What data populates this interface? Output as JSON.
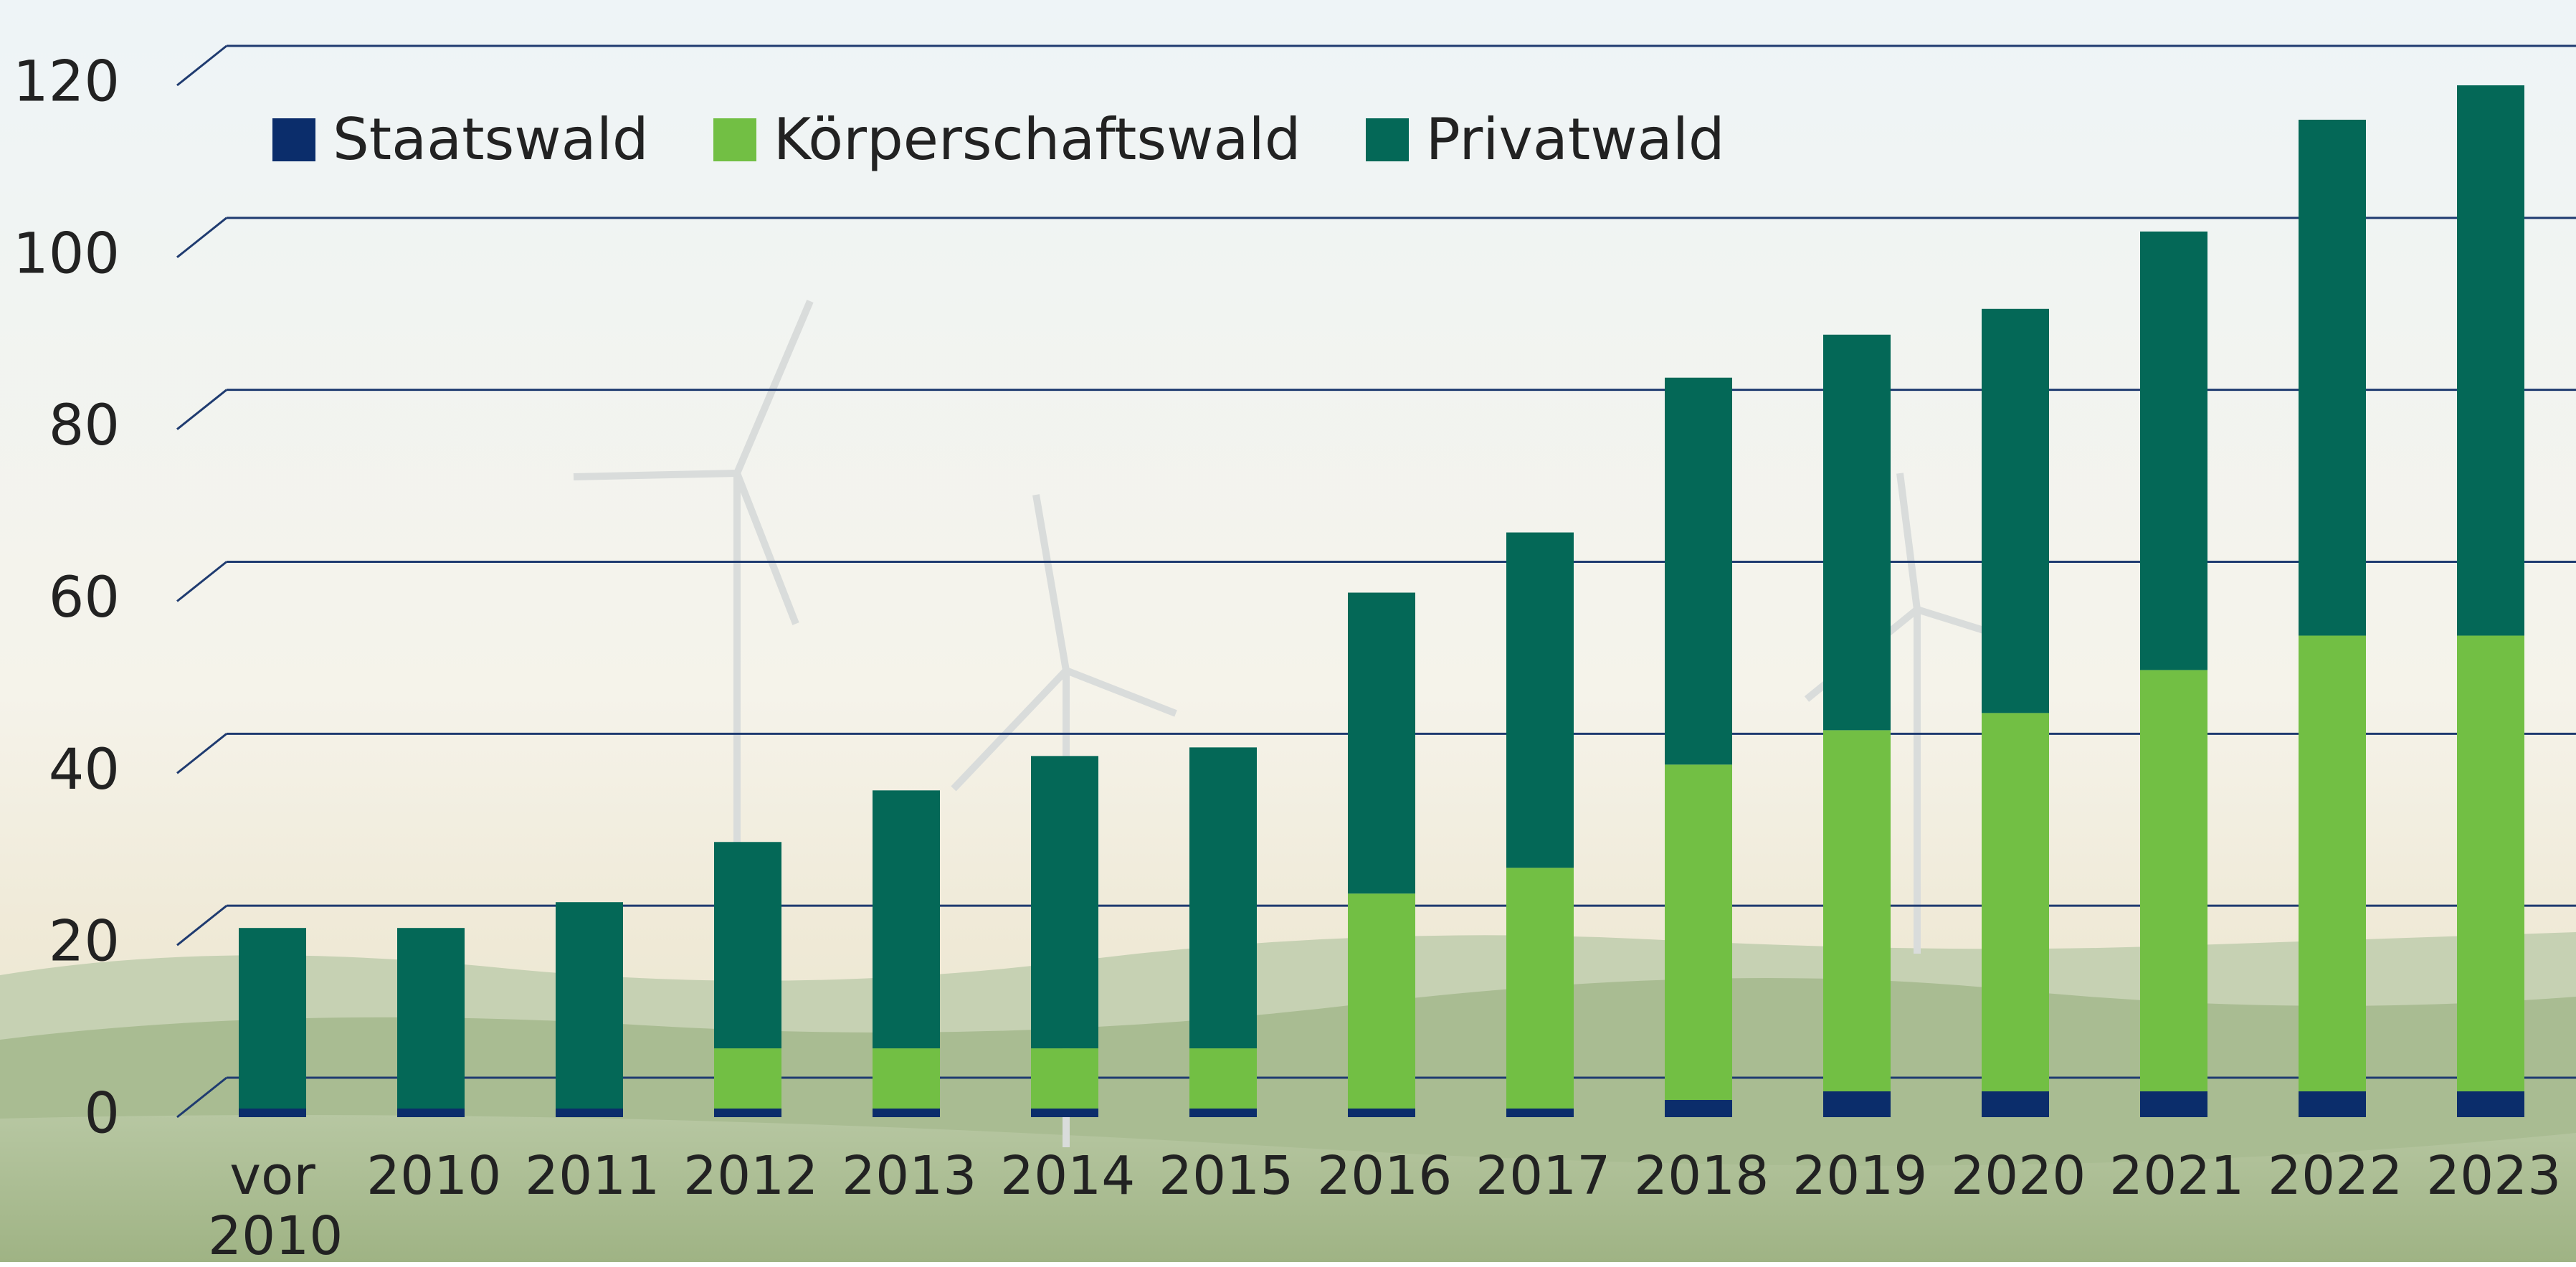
{
  "chart_data": {
    "type": "stacked-bar",
    "categories": [
      "vor 2010",
      "2010",
      "2011",
      "2012",
      "2013",
      "2014",
      "2015",
      "2016",
      "2017",
      "2018",
      "2019",
      "2020",
      "2021",
      "2022",
      "2023"
    ],
    "series": [
      {
        "name": "Staatswald",
        "color": "#0b2d6b",
        "values": [
          1,
          1,
          1,
          1,
          1,
          1,
          1,
          1,
          1,
          2,
          3,
          3,
          3,
          3,
          3
        ]
      },
      {
        "name": "Körperschaftswald",
        "color": "#72bf44",
        "values": [
          0,
          0,
          0,
          7,
          7,
          7,
          7,
          25,
          28,
          39,
          42,
          44,
          49,
          53,
          53
        ]
      },
      {
        "name": "Privatwald",
        "color": "#046857",
        "values": [
          21,
          21,
          24,
          24,
          30,
          34,
          35,
          35,
          39,
          45,
          46,
          47,
          51,
          60,
          64
        ]
      }
    ],
    "ylim": [
      0,
      120
    ],
    "yticks": [
      0,
      20,
      40,
      60,
      80,
      100,
      120
    ],
    "grid": true,
    "legend": "upper-left"
  }
}
